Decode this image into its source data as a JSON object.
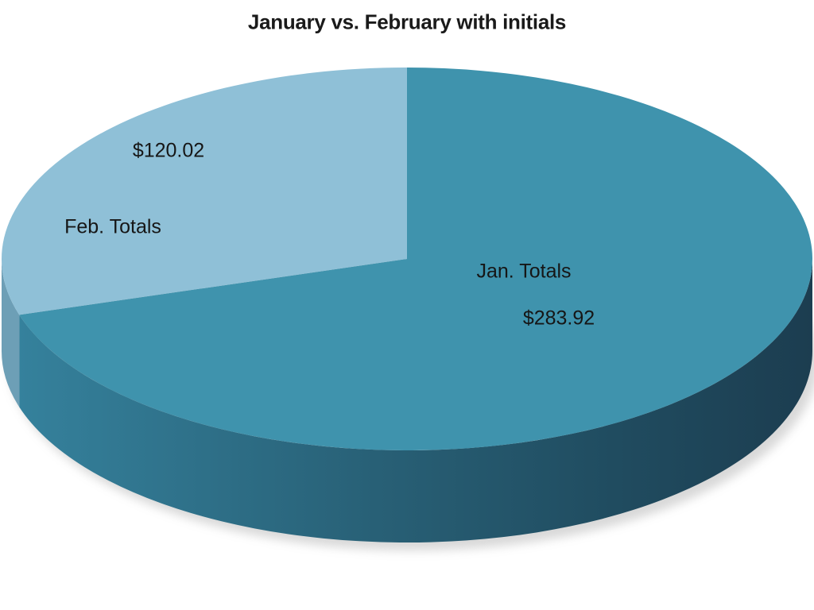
{
  "page": {
    "background": "#ffffff",
    "text_color": "#1a1a1a"
  },
  "chart_data": {
    "type": "pie",
    "style": "pie-3d",
    "title": "January vs. February with initials",
    "legend": "none",
    "labels_on_chart": true,
    "start_angle_deg": 0,
    "direction": "clockwise",
    "total": 403.94,
    "slices": [
      {
        "label": "Jan. Totals",
        "value": 283.92,
        "display_value": "$283.92",
        "color": "#3f93ad",
        "side_color_stops": [
          "#35819c",
          "#286076",
          "#204c60",
          "#1c3d50"
        ]
      },
      {
        "label": "Feb. Totals",
        "value": 120.02,
        "display_value": "$120.02",
        "color": "#8fc0d7",
        "side_color_stops": [
          "#6d9fb6"
        ]
      }
    ],
    "shadow_color": "#9a9a9a",
    "text_color": "#161616"
  }
}
